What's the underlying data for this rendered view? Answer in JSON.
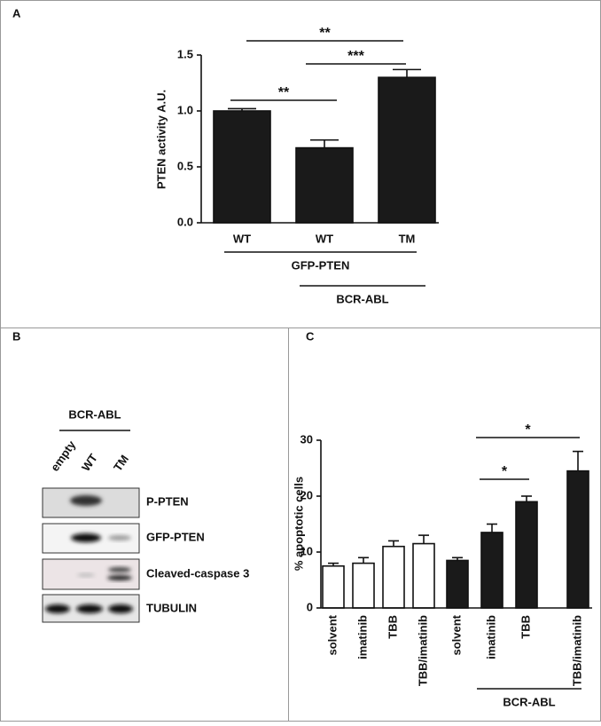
{
  "chart_data": [
    {
      "type": "bar",
      "panel": "A",
      "y_label": "PTEN activity A.U.",
      "categories": [
        "WT",
        "WT",
        "TM"
      ],
      "values": [
        1.0,
        0.67,
        1.3
      ],
      "errors": [
        0.02,
        0.07,
        0.07
      ],
      "colors": [
        "#1a1a1a",
        "#1a1a1a",
        "#1a1a1a"
      ],
      "ylim": [
        0,
        1.5
      ],
      "yticks": [
        {
          "value": 0,
          "label": "0.0"
        },
        {
          "value": 0.5,
          "label": "0.5"
        },
        {
          "value": 1,
          "label": "1.0"
        },
        {
          "value": 1.5,
          "label": "1.5"
        }
      ],
      "annotations": [
        "**",
        "***",
        "**"
      ],
      "groups": [
        "GFP-PTEN",
        "BCR-ABL"
      ]
    },
    {
      "type": "bar",
      "panel": "C",
      "y_label": "% apoptotic cells",
      "categories": [
        "solvent",
        "imatinib",
        "TBB",
        "TBB/imatinib",
        "solvent",
        "imatinib",
        "TBB",
        "TBB/imatinib"
      ],
      "values": [
        7.5,
        8,
        11,
        11.5,
        8.5,
        13.5,
        19,
        24.5
      ],
      "errors": [
        0.5,
        1,
        1,
        1.5,
        0.5,
        1.5,
        1,
        3.5
      ],
      "colors": [
        "#ffffff",
        "#ffffff",
        "#ffffff",
        "#ffffff",
        "#1a1a1a",
        "#1a1a1a",
        "#1a1a1a",
        "#1a1a1a"
      ],
      "ylim": [
        0,
        30
      ],
      "yticks": [
        0,
        10,
        20,
        30
      ],
      "annotations": [
        "*",
        "*"
      ],
      "groups": [
        "BCR-ABL"
      ]
    }
  ],
  "blot": {
    "panel": "B",
    "group": "BCR-ABL",
    "lanes": [
      "empty",
      "WT",
      "TM"
    ],
    "rows": [
      "P-PTEN",
      "GFP-PTEN",
      "Cleaved-caspase 3",
      "TUBULIN"
    ]
  }
}
